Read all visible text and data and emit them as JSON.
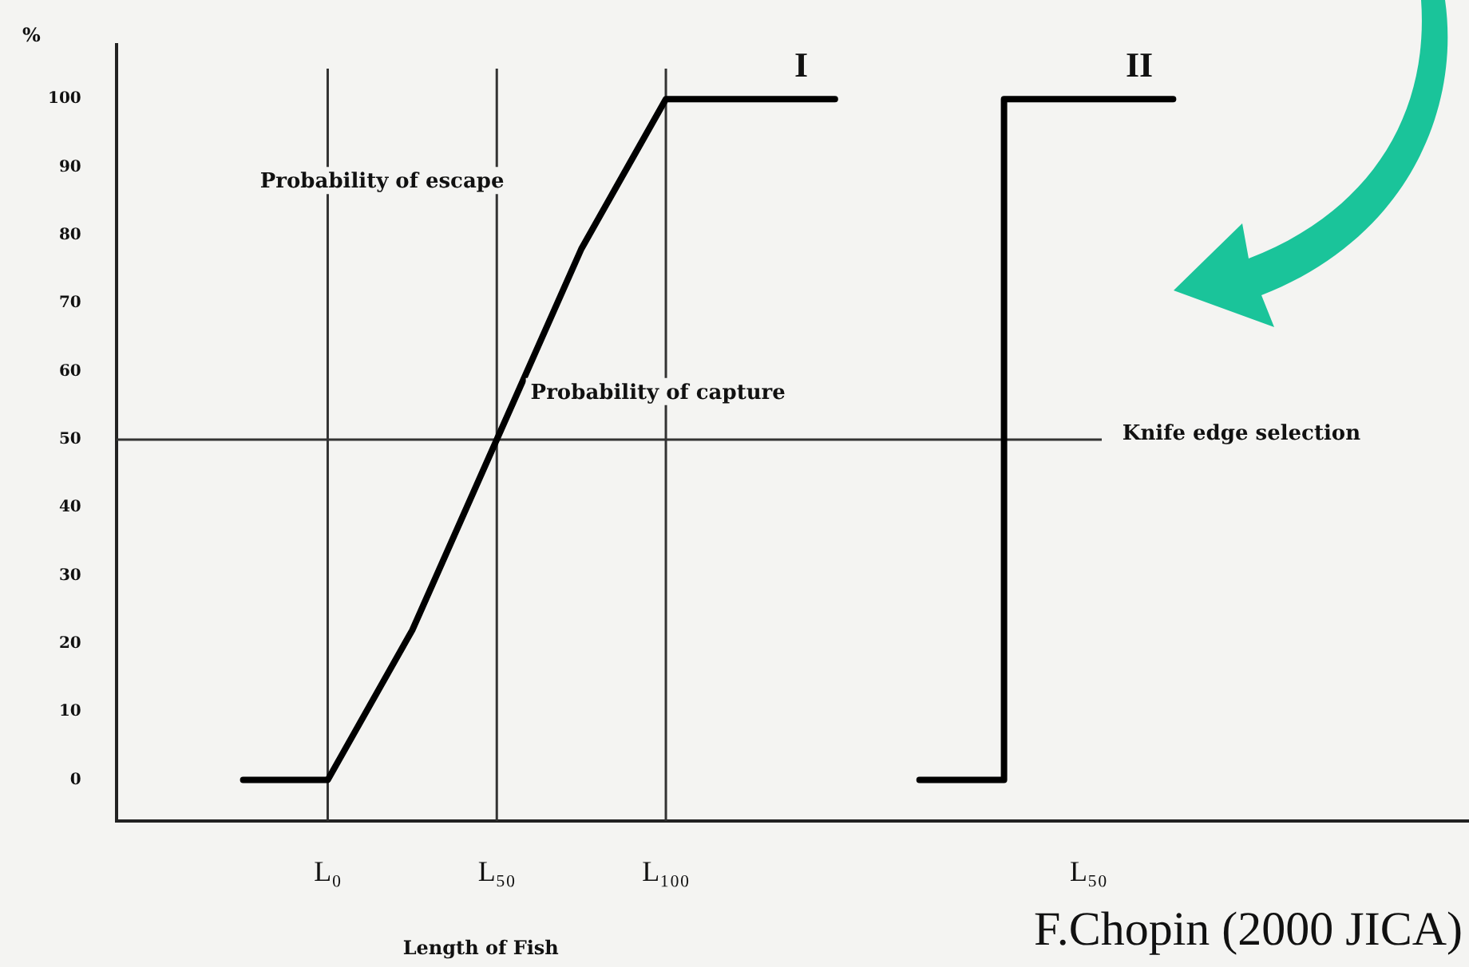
{
  "chart_data": {
    "type": "line",
    "ylabel": "%",
    "xlabel": "Length of Fish",
    "categories": [
      null,
      null,
      "L₀",
      null,
      "L₅₀",
      null,
      "L₁₀₀",
      null,
      null,
      null,
      null,
      "L₅₀",
      null,
      null,
      null,
      null
    ],
    "series": [
      {
        "name": "I",
        "type": "line",
        "color": "#000000",
        "values": [
          null,
          0,
          0,
          22,
          50,
          78,
          100,
          100,
          100,
          null,
          null,
          null,
          null,
          null,
          null,
          null
        ]
      },
      {
        "name": "II",
        "type": "step",
        "color": "#000000",
        "values": [
          null,
          null,
          null,
          null,
          null,
          null,
          null,
          null,
          null,
          0,
          0,
          100,
          100,
          null,
          null,
          null
        ]
      }
    ],
    "ylim": [
      -6,
      108
    ],
    "yticks": [
      0,
      10,
      20,
      30,
      40,
      50,
      60,
      70,
      80,
      90,
      100
    ],
    "ref_lines": [
      {
        "axis": "y",
        "value": 50,
        "color": "#333333"
      },
      {
        "axis": "x",
        "value": "L₀",
        "color": "#333333"
      },
      {
        "axis": "x",
        "value": "L₅₀",
        "color": "#333333"
      },
      {
        "axis": "x",
        "value": "L₁₀₀",
        "color": "#333333"
      }
    ],
    "annotations": [
      "Probability of escape",
      "Probability of capture",
      "Knife edge selection",
      "F.Chopin (2000 JICA)"
    ],
    "grid": false,
    "legend": false,
    "marker": "none",
    "line_style": "solid"
  }
}
